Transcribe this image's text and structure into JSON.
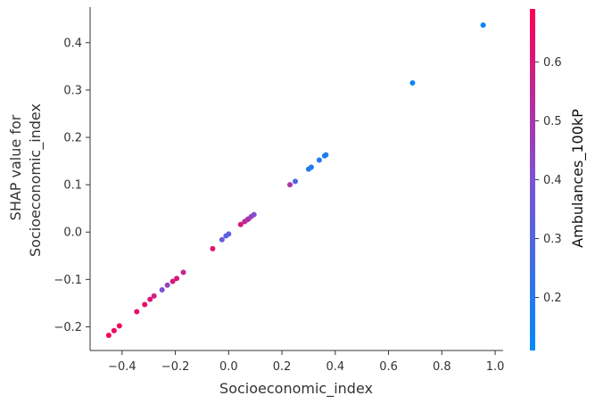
{
  "chart_data": {
    "type": "scatter",
    "title": "",
    "xlabel": "Socioeconomic_index",
    "ylabel_lines": [
      "SHAP value for",
      "Socioeconomic_index"
    ],
    "xlim": [
      -0.52,
      1.03
    ],
    "ylim": [
      -0.25,
      0.475
    ],
    "x_ticks": [
      -0.4,
      -0.2,
      0.0,
      0.2,
      0.4,
      0.6,
      0.8,
      1.0
    ],
    "x_tick_labels": [
      "−0.4",
      "−0.2",
      "0.0",
      "0.2",
      "0.4",
      "0.6",
      "0.8",
      "1.0"
    ],
    "y_ticks": [
      -0.2,
      -0.1,
      0.0,
      0.1,
      0.2,
      0.3,
      0.4
    ],
    "y_tick_labels": [
      "−0.2",
      "−0.1",
      "0.0",
      "0.1",
      "0.2",
      "0.3",
      "0.4"
    ],
    "grid": false,
    "colorbar": {
      "label": "Ambulances_100kP",
      "range": [
        0.11,
        0.69
      ],
      "ticks": [
        0.2,
        0.3,
        0.4,
        0.5,
        0.6
      ],
      "tick_labels": [
        "0.2",
        "0.3",
        "0.4",
        "0.5",
        "0.6"
      ],
      "colors": [
        "#008afb",
        "#7c52d6",
        "#ff0052"
      ]
    },
    "points": [
      {
        "x": -0.45,
        "y": -0.218,
        "c": 0.67
      },
      {
        "x": -0.43,
        "y": -0.208,
        "c": 0.66
      },
      {
        "x": -0.41,
        "y": -0.198,
        "c": 0.66
      },
      {
        "x": -0.345,
        "y": -0.168,
        "c": 0.63
      },
      {
        "x": -0.315,
        "y": -0.153,
        "c": 0.64
      },
      {
        "x": -0.295,
        "y": -0.142,
        "c": 0.61
      },
      {
        "x": -0.28,
        "y": -0.135,
        "c": 0.58
      },
      {
        "x": -0.25,
        "y": -0.122,
        "c": 0.4
      },
      {
        "x": -0.23,
        "y": -0.112,
        "c": 0.45
      },
      {
        "x": -0.21,
        "y": -0.104,
        "c": 0.6
      },
      {
        "x": -0.195,
        "y": -0.098,
        "c": 0.6
      },
      {
        "x": -0.17,
        "y": -0.085,
        "c": 0.55
      },
      {
        "x": -0.06,
        "y": -0.035,
        "c": 0.62
      },
      {
        "x": -0.025,
        "y": -0.016,
        "c": 0.35
      },
      {
        "x": -0.01,
        "y": -0.008,
        "c": 0.32
      },
      {
        "x": 0.0,
        "y": -0.004,
        "c": 0.33
      },
      {
        "x": 0.045,
        "y": 0.016,
        "c": 0.6
      },
      {
        "x": 0.06,
        "y": 0.022,
        "c": 0.55
      },
      {
        "x": 0.07,
        "y": 0.026,
        "c": 0.48
      },
      {
        "x": 0.075,
        "y": 0.028,
        "c": 0.52
      },
      {
        "x": 0.085,
        "y": 0.033,
        "c": 0.45
      },
      {
        "x": 0.095,
        "y": 0.037,
        "c": 0.42
      },
      {
        "x": 0.23,
        "y": 0.1,
        "c": 0.5
      },
      {
        "x": 0.25,
        "y": 0.107,
        "c": 0.3
      },
      {
        "x": 0.3,
        "y": 0.133,
        "c": 0.19
      },
      {
        "x": 0.31,
        "y": 0.137,
        "c": 0.2
      },
      {
        "x": 0.34,
        "y": 0.152,
        "c": 0.19
      },
      {
        "x": 0.36,
        "y": 0.161,
        "c": 0.2
      },
      {
        "x": 0.365,
        "y": 0.163,
        "c": 0.19
      },
      {
        "x": 0.69,
        "y": 0.315,
        "c": 0.15
      },
      {
        "x": 0.955,
        "y": 0.437,
        "c": 0.13
      }
    ]
  }
}
